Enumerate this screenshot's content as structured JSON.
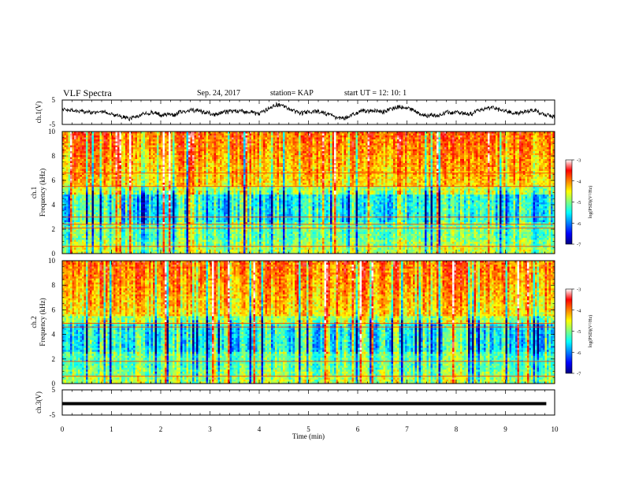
{
  "header": {
    "title": "VLF Spectra",
    "date": "Sep. 24, 2017",
    "station": "station= KAP",
    "start": "start  UT  =    12: 10: 1"
  },
  "colors": {
    "colormap": [
      "#000080",
      "#0000ff",
      "#0080ff",
      "#00ffff",
      "#80ff80",
      "#ffff00",
      "#ff8000",
      "#ff0000",
      "#ffffff"
    ]
  },
  "chart_data": [
    {
      "type": "line",
      "ylabel": "ch.1(V)",
      "ylim": [
        -5,
        5
      ],
      "yticks": [
        "5",
        "-5"
      ],
      "xlim": [
        0,
        10
      ],
      "description_series": "voltage trace fluctuating roughly between -3 and +3 V over 0 to 10 min"
    },
    {
      "type": "heatmap",
      "ylabel": "ch.1 Frequency (kHz)",
      "ylim": [
        0,
        10
      ],
      "yticks": [
        "0",
        "2",
        "4",
        "6",
        "8",
        "10"
      ],
      "xlim": [
        0,
        10
      ],
      "colorbar": {
        "label": "log(PSD)(V²/Hz)",
        "range": [
          -7,
          -3
        ],
        "ticks": [
          "-3",
          "-4",
          "-5",
          "-6",
          "-7"
        ]
      },
      "horizontal_lines_khz": [
        0.6,
        2.1,
        2.4,
        3.0,
        5.5,
        6.6
      ]
    },
    {
      "type": "heatmap",
      "ylabel": "ch.2 Frequency (kHz)",
      "ylim": [
        0,
        10
      ],
      "yticks": [
        "0",
        "2",
        "4",
        "6",
        "8",
        "10"
      ],
      "xlim": [
        0,
        10
      ],
      "colorbar": {
        "label": "log(PSD)(V²/Hz)",
        "range": [
          -7,
          -3
        ],
        "ticks": [
          "-3",
          "-4",
          "-5",
          "-6",
          "-7"
        ]
      },
      "horizontal_lines_khz": [
        0.6,
        1.8,
        4.6,
        4.9
      ]
    },
    {
      "type": "line",
      "ylabel": "ch.3(V)",
      "ylim": [
        -5,
        5
      ],
      "yticks": [
        "5",
        "-5"
      ],
      "xlim": [
        0,
        10
      ],
      "xticks": [
        "0",
        "1",
        "2",
        "3",
        "4",
        "5",
        "6",
        "7",
        "8",
        "9",
        "10"
      ],
      "xlabel": "Time  (min)",
      "constant_value": 0
    }
  ]
}
